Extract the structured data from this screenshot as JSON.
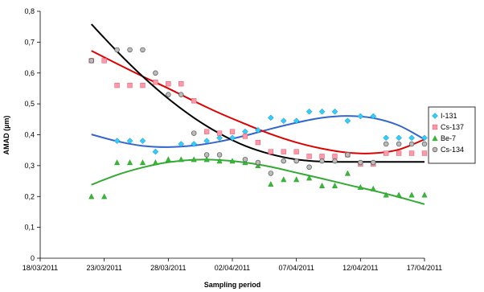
{
  "chart_data": {
    "type": "scatter",
    "title": "",
    "xlabel": "Sampling period",
    "ylabel": "AMAD (µm)",
    "x_type": "date",
    "xlim": [
      "2011-03-18",
      "2011-04-17"
    ],
    "ylim": [
      0,
      0.8
    ],
    "y_ticks": [
      0,
      0.1,
      0.2,
      0.3,
      0.4,
      0.5,
      0.6,
      0.7,
      0.8
    ],
    "y_tick_labels": [
      "0",
      "0,1",
      "0,2",
      "0,3",
      "0,4",
      "0,5",
      "0,6",
      "0,7",
      "0,8"
    ],
    "x_ticks": [
      "2011-03-18",
      "2011-03-23",
      "2011-03-28",
      "2011-04-02",
      "2011-04-07",
      "2011-04-12",
      "2011-04-17"
    ],
    "x_tick_labels": [
      "18/03/2011",
      "23/03/2011",
      "28/03/2011",
      "02/04/2011",
      "07/04/2011",
      "12/04/2011",
      "17/04/2011"
    ],
    "grid": false,
    "legend_position": "right",
    "series": [
      {
        "name": "I-131",
        "color": "#33ccff",
        "line_color": "#3366cc",
        "marker": "diamond",
        "points": [
          [
            "2011-03-24",
            0.38
          ],
          [
            "2011-03-25",
            0.38
          ],
          [
            "2011-03-26",
            0.38
          ],
          [
            "2011-03-27",
            0.345
          ],
          [
            "2011-03-29",
            0.37
          ],
          [
            "2011-03-30",
            0.37
          ],
          [
            "2011-03-31",
            0.38
          ],
          [
            "2011-04-01",
            0.39
          ],
          [
            "2011-04-02",
            0.39
          ],
          [
            "2011-04-03",
            0.41
          ],
          [
            "2011-04-04",
            0.415
          ],
          [
            "2011-04-05",
            0.455
          ],
          [
            "2011-04-06",
            0.445
          ],
          [
            "2011-04-07",
            0.445
          ],
          [
            "2011-04-08",
            0.475
          ],
          [
            "2011-04-09",
            0.475
          ],
          [
            "2011-04-10",
            0.475
          ],
          [
            "2011-04-11",
            0.445
          ],
          [
            "2011-04-12",
            0.46
          ],
          [
            "2011-04-13",
            0.46
          ],
          [
            "2011-04-14",
            0.39
          ],
          [
            "2011-04-15",
            0.39
          ],
          [
            "2011-04-16",
            0.39
          ],
          [
            "2011-04-17",
            0.39
          ]
        ],
        "trend": [
          [
            "2011-03-22",
            0.401
          ],
          [
            "2011-03-24",
            0.379
          ],
          [
            "2011-03-26",
            0.364
          ],
          [
            "2011-03-28",
            0.36
          ],
          [
            "2011-03-30",
            0.365
          ],
          [
            "2011-04-01",
            0.378
          ],
          [
            "2011-04-03",
            0.397
          ],
          [
            "2011-04-05",
            0.419
          ],
          [
            "2011-04-07",
            0.439
          ],
          [
            "2011-04-09",
            0.455
          ],
          [
            "2011-04-11",
            0.461
          ],
          [
            "2011-04-13",
            0.454
          ],
          [
            "2011-04-15",
            0.43
          ],
          [
            "2011-04-17",
            0.385
          ]
        ]
      },
      {
        "name": "Cs-137",
        "color": "#ff99aa",
        "line_color": "#dd0000",
        "marker": "square",
        "points": [
          [
            "2011-03-22",
            0.64
          ],
          [
            "2011-03-23",
            0.64
          ],
          [
            "2011-03-24",
            0.56
          ],
          [
            "2011-03-25",
            0.56
          ],
          [
            "2011-03-26",
            0.56
          ],
          [
            "2011-03-27",
            0.57
          ],
          [
            "2011-03-28",
            0.565
          ],
          [
            "2011-03-29",
            0.565
          ],
          [
            "2011-03-30",
            0.51
          ],
          [
            "2011-03-31",
            0.41
          ],
          [
            "2011-04-01",
            0.405
          ],
          [
            "2011-04-02",
            0.41
          ],
          [
            "2011-04-03",
            0.395
          ],
          [
            "2011-04-04",
            0.375
          ],
          [
            "2011-04-05",
            0.345
          ],
          [
            "2011-04-06",
            0.345
          ],
          [
            "2011-04-07",
            0.345
          ],
          [
            "2011-04-08",
            0.33
          ],
          [
            "2011-04-09",
            0.33
          ],
          [
            "2011-04-10",
            0.33
          ],
          [
            "2011-04-11",
            0.335
          ],
          [
            "2011-04-12",
            0.305
          ],
          [
            "2011-04-13",
            0.305
          ],
          [
            "2011-04-14",
            0.34
          ],
          [
            "2011-04-15",
            0.34
          ],
          [
            "2011-04-16",
            0.34
          ],
          [
            "2011-04-17",
            0.34
          ]
        ],
        "trend": [
          [
            "2011-03-22",
            0.672
          ],
          [
            "2011-03-24",
            0.63
          ],
          [
            "2011-03-26",
            0.589
          ],
          [
            "2011-03-28",
            0.55
          ],
          [
            "2011-03-30",
            0.509
          ],
          [
            "2011-04-01",
            0.47
          ],
          [
            "2011-04-03",
            0.435
          ],
          [
            "2011-04-05",
            0.402
          ],
          [
            "2011-04-07",
            0.375
          ],
          [
            "2011-04-09",
            0.355
          ],
          [
            "2011-04-11",
            0.342
          ],
          [
            "2011-04-13",
            0.34
          ],
          [
            "2011-04-15",
            0.352
          ],
          [
            "2011-04-17",
            0.385
          ]
        ]
      },
      {
        "name": "Be-7",
        "color": "#33bb33",
        "line_color": "#33aa33",
        "marker": "triangle",
        "points": [
          [
            "2011-03-22",
            0.2
          ],
          [
            "2011-03-23",
            0.2
          ],
          [
            "2011-03-24",
            0.31
          ],
          [
            "2011-03-25",
            0.31
          ],
          [
            "2011-03-26",
            0.31
          ],
          [
            "2011-03-27",
            0.31
          ],
          [
            "2011-03-28",
            0.32
          ],
          [
            "2011-03-29",
            0.32
          ],
          [
            "2011-03-30",
            0.32
          ],
          [
            "2011-03-31",
            0.32
          ],
          [
            "2011-04-01",
            0.315
          ],
          [
            "2011-04-02",
            0.315
          ],
          [
            "2011-04-03",
            0.31
          ],
          [
            "2011-04-04",
            0.3
          ],
          [
            "2011-04-05",
            0.24
          ],
          [
            "2011-04-06",
            0.255
          ],
          [
            "2011-04-07",
            0.255
          ],
          [
            "2011-04-08",
            0.26
          ],
          [
            "2011-04-09",
            0.235
          ],
          [
            "2011-04-10",
            0.235
          ],
          [
            "2011-04-11",
            0.275
          ],
          [
            "2011-04-12",
            0.23
          ],
          [
            "2011-04-13",
            0.225
          ],
          [
            "2011-04-14",
            0.205
          ],
          [
            "2011-04-15",
            0.205
          ],
          [
            "2011-04-16",
            0.205
          ],
          [
            "2011-04-17",
            0.205
          ]
        ],
        "trend": [
          [
            "2011-03-22",
            0.238
          ],
          [
            "2011-03-24",
            0.27
          ],
          [
            "2011-03-26",
            0.294
          ],
          [
            "2011-03-28",
            0.311
          ],
          [
            "2011-03-30",
            0.319
          ],
          [
            "2011-04-01",
            0.318
          ],
          [
            "2011-04-03",
            0.31
          ],
          [
            "2011-04-05",
            0.296
          ],
          [
            "2011-04-07",
            0.277
          ],
          [
            "2011-04-09",
            0.258
          ],
          [
            "2011-04-11",
            0.238
          ],
          [
            "2011-04-13",
            0.219
          ],
          [
            "2011-04-15",
            0.198
          ],
          [
            "2011-04-17",
            0.175
          ]
        ]
      },
      {
        "name": "Cs-134",
        "color": "#bbbbbb",
        "line_color": "#000000",
        "marker": "circle",
        "points": [
          [
            "2011-03-22",
            0.64
          ],
          [
            "2011-03-24",
            0.675
          ],
          [
            "2011-03-25",
            0.675
          ],
          [
            "2011-03-26",
            0.675
          ],
          [
            "2011-03-27",
            0.6
          ],
          [
            "2011-03-28",
            0.53
          ],
          [
            "2011-03-29",
            0.53
          ],
          [
            "2011-03-30",
            0.405
          ],
          [
            "2011-03-31",
            0.335
          ],
          [
            "2011-04-01",
            0.335
          ],
          [
            "2011-04-03",
            0.32
          ],
          [
            "2011-04-04",
            0.31
          ],
          [
            "2011-04-05",
            0.275
          ],
          [
            "2011-04-06",
            0.315
          ],
          [
            "2011-04-07",
            0.315
          ],
          [
            "2011-04-08",
            0.295
          ],
          [
            "2011-04-09",
            0.315
          ],
          [
            "2011-04-10",
            0.315
          ],
          [
            "2011-04-11",
            0.335
          ],
          [
            "2011-04-12",
            0.31
          ],
          [
            "2011-04-13",
            0.31
          ],
          [
            "2011-04-14",
            0.37
          ],
          [
            "2011-04-15",
            0.37
          ],
          [
            "2011-04-16",
            0.37
          ],
          [
            "2011-04-17",
            0.37
          ]
        ],
        "trend": [
          [
            "2011-03-22",
            0.758
          ],
          [
            "2011-03-24",
            0.67
          ],
          [
            "2011-03-26",
            0.589
          ],
          [
            "2011-03-28",
            0.517
          ],
          [
            "2011-03-30",
            0.455
          ],
          [
            "2011-04-01",
            0.404
          ],
          [
            "2011-04-03",
            0.364
          ],
          [
            "2011-04-05",
            0.337
          ],
          [
            "2011-04-07",
            0.32
          ],
          [
            "2011-04-09",
            0.313
          ],
          [
            "2011-04-11",
            0.312
          ],
          [
            "2011-04-13",
            0.312
          ],
          [
            "2011-04-15",
            0.312
          ],
          [
            "2011-04-17",
            0.312
          ]
        ]
      }
    ]
  }
}
